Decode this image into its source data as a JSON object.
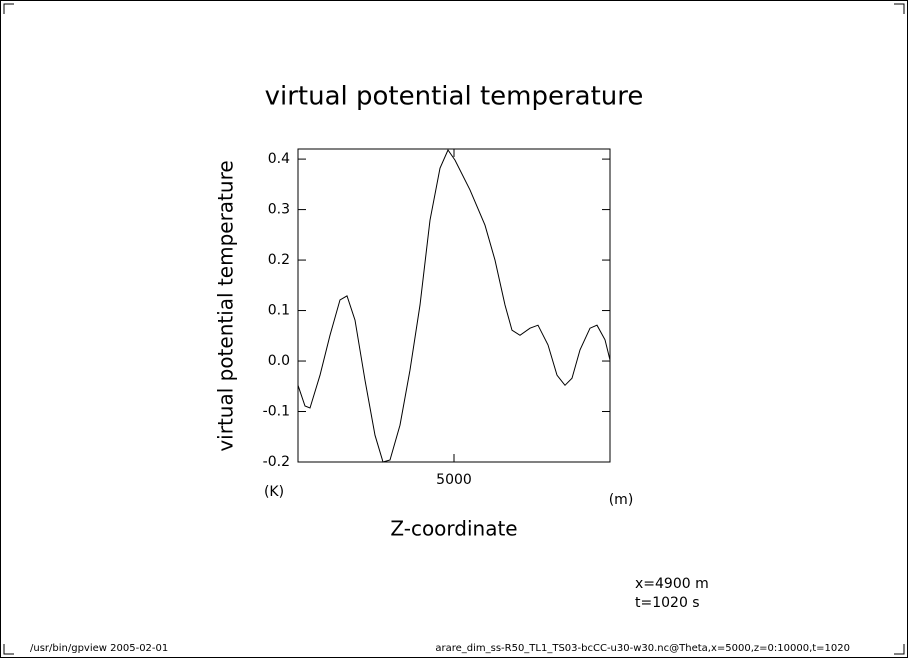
{
  "chart_data": {
    "type": "line",
    "title": "virtual potential temperature",
    "y_label": "virtual potential temperature",
    "y_unit": "(K)",
    "x_label": "Z-coordinate",
    "x_unit": "(m)",
    "annotations": [
      "x=4900 m",
      "t=1020 s"
    ],
    "footer_left": "/usr/bin/gpview  2005-02-01",
    "footer_right": "arare_dim_ss-R50_TL1_TS03-bcCC-u30-w30.nc@Theta,x=5000,z=0:10000,t=1020",
    "color": "#000000",
    "x": [
      0,
      224,
      385,
      705,
      1026,
      1346,
      1571,
      1827,
      2147,
      2468,
      2724,
      2949,
      3269,
      3590,
      3910,
      4231,
      4551,
      4808,
      5032,
      5513,
      5994,
      6314,
      6635,
      6859,
      7115,
      7436,
      7692,
      8013,
      8301,
      8558,
      8782,
      9038,
      9359,
      9583,
      9840,
      10000
    ],
    "values": [
      -0.048,
      -0.089,
      -0.093,
      -0.028,
      0.051,
      0.121,
      0.129,
      0.081,
      -0.038,
      -0.147,
      -0.2,
      -0.196,
      -0.127,
      -0.018,
      0.111,
      0.279,
      0.382,
      0.418,
      0.398,
      0.339,
      0.269,
      0.2,
      0.111,
      0.061,
      0.051,
      0.065,
      0.071,
      0.032,
      -0.028,
      -0.048,
      -0.034,
      0.022,
      0.065,
      0.071,
      0.042,
      0.002
    ],
    "xlim": [
      0,
      10000
    ],
    "xticks": [
      5000
    ],
    "ylim": [
      -0.2,
      0.42
    ],
    "yticks": [
      -0.2,
      -0.1,
      {
        "value": 0,
        "label": "0.0"
      },
      0.1,
      0.2,
      0.3,
      0.4
    ]
  }
}
